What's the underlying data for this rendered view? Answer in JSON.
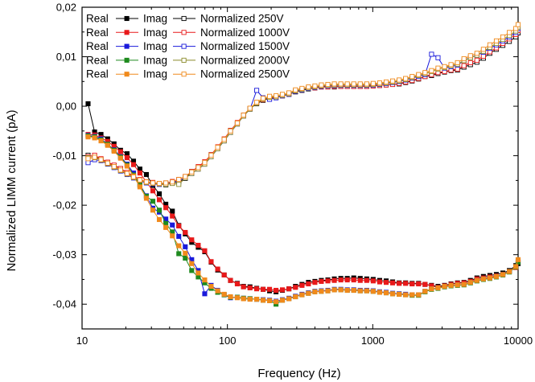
{
  "chart_data": {
    "type": "line",
    "xlabel": "Frequency (Hz)",
    "ylabel": "Normalized LIMM current (pA)",
    "xscale": "log",
    "xlim": [
      10,
      10000
    ],
    "ylim": [
      -0.045,
      0.02
    ],
    "x_ticks": [
      {
        "value": 10,
        "label": "10"
      },
      {
        "value": 100,
        "label": "100"
      },
      {
        "value": 1000,
        "label": "1000"
      },
      {
        "value": 10000,
        "label": "10000"
      }
    ],
    "y_ticks": [
      {
        "value": 0.02,
        "label": "0,02"
      },
      {
        "value": 0.01,
        "label": "0,01"
      },
      {
        "value": 0.0,
        "label": "0,00"
      },
      {
        "value": -0.01,
        "label": "-0,01"
      },
      {
        "value": -0.02,
        "label": "-0,02"
      },
      {
        "value": -0.03,
        "label": "-0,03"
      },
      {
        "value": -0.04,
        "label": "-0,04"
      }
    ],
    "grid": false,
    "legend_position": "top-left",
    "x": [
      11,
      12.2,
      13.5,
      15,
      16.6,
      18.4,
      20.4,
      22.6,
      25,
      27.7,
      30.7,
      34,
      37.7,
      41.8,
      46.3,
      51.3,
      56.8,
      63,
      69.8,
      77.3,
      85.7,
      95,
      105,
      117,
      129,
      143,
      159,
      176,
      195,
      216,
      239,
      265,
      294,
      326,
      361,
      400,
      443,
      491,
      544,
      603,
      668,
      740,
      820,
      909,
      1007,
      1116,
      1237,
      1370,
      1519,
      1683,
      1865,
      2067,
      2290,
      2538,
      2812,
      3117,
      3454,
      3827,
      4241,
      4700,
      5208,
      5771,
      6395,
      7087,
      7853,
      8703,
      9644,
      10000
    ],
    "series": [
      {
        "group": "250V",
        "part": "Real",
        "color": "#000000",
        "filled": true,
        "values": [
          0.0005,
          -0.0052,
          -0.0057,
          -0.0066,
          -0.0076,
          -0.0089,
          -0.0096,
          -0.0111,
          -0.0127,
          -0.0138,
          -0.016,
          -0.0177,
          -0.0198,
          -0.0212,
          -0.0241,
          -0.0258,
          -0.0275,
          -0.0285,
          -0.0294,
          -0.0315,
          -0.0331,
          -0.0341,
          -0.0352,
          -0.0358,
          -0.0364,
          -0.0365,
          -0.0368,
          -0.037,
          -0.0373,
          -0.0375,
          -0.0372,
          -0.0369,
          -0.0364,
          -0.036,
          -0.0356,
          -0.0354,
          -0.0352,
          -0.0351,
          -0.0349,
          -0.0348,
          -0.0348,
          -0.0347,
          -0.0348,
          -0.0349,
          -0.035,
          -0.0352,
          -0.0353,
          -0.0355,
          -0.0357,
          -0.0357,
          -0.0358,
          -0.0358,
          -0.036,
          -0.0362,
          -0.0364,
          -0.0362,
          -0.0359,
          -0.0357,
          -0.0356,
          -0.0352,
          -0.0347,
          -0.0344,
          -0.0342,
          -0.034,
          -0.0337,
          -0.0332,
          -0.0322,
          -0.0318
        ]
      },
      {
        "group": "250V",
        "part": "Imag",
        "color": "#000000",
        "filled": false,
        "values": [
          -0.0099,
          -0.0102,
          -0.0107,
          -0.0114,
          -0.012,
          -0.0126,
          -0.0134,
          -0.0141,
          -0.0149,
          -0.0153,
          -0.0155,
          -0.0157,
          -0.0159,
          -0.0155,
          -0.0153,
          -0.0146,
          -0.0132,
          -0.0123,
          -0.0115,
          -0.0098,
          -0.0083,
          -0.0067,
          -0.0049,
          -0.0034,
          -0.0018,
          -0.0005,
          0.0005,
          0.0012,
          0.0016,
          0.0018,
          0.0021,
          0.0024,
          0.0029,
          0.0032,
          0.0035,
          0.0037,
          0.0039,
          0.0039,
          0.0039,
          0.004,
          0.004,
          0.004,
          0.004,
          0.004,
          0.0041,
          0.0042,
          0.0043,
          0.0044,
          0.0045,
          0.0048,
          0.0051,
          0.0055,
          0.006,
          0.0062,
          0.0066,
          0.0069,
          0.0072,
          0.0073,
          0.0079,
          0.0084,
          0.0089,
          0.0097,
          0.0107,
          0.0115,
          0.0123,
          0.0131,
          0.014,
          0.0148
        ]
      },
      {
        "group": "1000V",
        "part": "Real",
        "color": "#e8191a",
        "filled": true,
        "values": [
          -0.0057,
          -0.0058,
          -0.0064,
          -0.0071,
          -0.0081,
          -0.0092,
          -0.0104,
          -0.0118,
          -0.0135,
          -0.0153,
          -0.0171,
          -0.0189,
          -0.0205,
          -0.0222,
          -0.0242,
          -0.0255,
          -0.027,
          -0.0281,
          -0.0292,
          -0.0314,
          -0.0329,
          -0.0341,
          -0.0352,
          -0.0359,
          -0.0365,
          -0.0367,
          -0.0369,
          -0.037,
          -0.037,
          -0.0372,
          -0.0371,
          -0.0369,
          -0.0366,
          -0.0362,
          -0.0359,
          -0.0356,
          -0.0354,
          -0.0353,
          -0.0352,
          -0.0351,
          -0.0351,
          -0.0351,
          -0.0352,
          -0.0352,
          -0.0353,
          -0.0355,
          -0.0356,
          -0.0357,
          -0.0358,
          -0.0358,
          -0.0359,
          -0.0359,
          -0.036,
          -0.0363,
          -0.0366,
          -0.0363,
          -0.036,
          -0.0358,
          -0.0357,
          -0.0354,
          -0.0349,
          -0.0347,
          -0.0345,
          -0.0343,
          -0.034,
          -0.0334,
          -0.0326,
          -0.0315
        ]
      },
      {
        "group": "1000V",
        "part": "Imag",
        "color": "#e8191a",
        "filled": false,
        "values": [
          -0.0102,
          -0.0099,
          -0.0106,
          -0.0113,
          -0.0119,
          -0.0126,
          -0.0134,
          -0.0141,
          -0.0148,
          -0.0153,
          -0.0154,
          -0.0156,
          -0.0155,
          -0.0152,
          -0.0148,
          -0.0142,
          -0.0132,
          -0.0122,
          -0.0112,
          -0.0098,
          -0.0082,
          -0.0066,
          -0.0049,
          -0.0033,
          -0.0018,
          -0.0005,
          0.0006,
          0.0013,
          0.0017,
          0.0018,
          0.0021,
          0.0024,
          0.003,
          0.0033,
          0.0036,
          0.0037,
          0.0039,
          0.0039,
          0.004,
          0.004,
          0.004,
          0.004,
          0.004,
          0.004,
          0.0041,
          0.0042,
          0.0043,
          0.0044,
          0.0046,
          0.0049,
          0.0052,
          0.0056,
          0.006,
          0.0064,
          0.0068,
          0.007,
          0.0073,
          0.0075,
          0.0082,
          0.0088,
          0.0093,
          0.0101,
          0.011,
          0.0118,
          0.0127,
          0.0136,
          0.0145,
          0.0153
        ]
      },
      {
        "group": "1500V",
        "part": "Real",
        "color": "#1a1adb",
        "filled": true,
        "values": [
          -0.0059,
          -0.0061,
          -0.0066,
          -0.0077,
          -0.0088,
          -0.0102,
          -0.0117,
          -0.0135,
          -0.0158,
          -0.0181,
          -0.0206,
          -0.0214,
          -0.0228,
          -0.024,
          -0.0263,
          -0.0284,
          -0.031,
          -0.0332,
          -0.0379,
          -0.0362,
          -0.0372,
          -0.0381,
          -0.0387,
          -0.0386,
          -0.0388,
          -0.0389,
          -0.039,
          -0.0391,
          -0.0392,
          -0.0394,
          -0.0391,
          -0.0388,
          -0.0384,
          -0.038,
          -0.0377,
          -0.0374,
          -0.0373,
          -0.0372,
          -0.037,
          -0.037,
          -0.0371,
          -0.0371,
          -0.0372,
          -0.0372,
          -0.0373,
          -0.0375,
          -0.0376,
          -0.0378,
          -0.0379,
          -0.038,
          -0.0381,
          -0.0381,
          -0.0374,
          -0.0369,
          -0.0367,
          -0.0364,
          -0.0362,
          -0.0361,
          -0.036,
          -0.0356,
          -0.0352,
          -0.0349,
          -0.0347,
          -0.0344,
          -0.034,
          -0.0334,
          -0.0324,
          -0.0314
        ]
      },
      {
        "group": "1500V",
        "part": "Imag",
        "color": "#1a1adb",
        "filled": false,
        "values": [
          -0.0114,
          -0.0108,
          -0.011,
          -0.0117,
          -0.0124,
          -0.0131,
          -0.0138,
          -0.0145,
          -0.0151,
          -0.0155,
          -0.0157,
          -0.0158,
          -0.0156,
          -0.0154,
          -0.015,
          -0.0145,
          -0.0136,
          -0.0127,
          -0.0117,
          -0.0102,
          -0.0086,
          -0.007,
          -0.0053,
          -0.0036,
          -0.002,
          -0.0006,
          0.0032,
          0.0017,
          0.0014,
          0.0017,
          0.0021,
          0.0024,
          0.003,
          0.0033,
          0.0036,
          0.0038,
          0.004,
          0.0041,
          0.0042,
          0.0042,
          0.0042,
          0.0042,
          0.0042,
          0.0042,
          0.0043,
          0.0044,
          0.0046,
          0.0048,
          0.005,
          0.0053,
          0.0057,
          0.006,
          0.0064,
          0.0105,
          0.0098,
          0.0077,
          0.008,
          0.0083,
          0.0092,
          0.0099,
          0.0103,
          0.0109,
          0.0117,
          0.0124,
          0.0132,
          0.014,
          0.0149,
          0.0157
        ]
      },
      {
        "group": "2000V",
        "part": "Real",
        "color": "#1e8a1e",
        "filled": true,
        "values": [
          -0.006,
          -0.0062,
          -0.0068,
          -0.0077,
          -0.0089,
          -0.0103,
          -0.0119,
          -0.0139,
          -0.016,
          -0.0182,
          -0.0192,
          -0.021,
          -0.0237,
          -0.0254,
          -0.0298,
          -0.0307,
          -0.0332,
          -0.0345,
          -0.0357,
          -0.0368,
          -0.0376,
          -0.0381,
          -0.0386,
          -0.0386,
          -0.0388,
          -0.0389,
          -0.039,
          -0.0392,
          -0.0393,
          -0.04,
          -0.0392,
          -0.0389,
          -0.0385,
          -0.0381,
          -0.0378,
          -0.0375,
          -0.0374,
          -0.0373,
          -0.0371,
          -0.0371,
          -0.0372,
          -0.0372,
          -0.0373,
          -0.0373,
          -0.0374,
          -0.0376,
          -0.0377,
          -0.0379,
          -0.038,
          -0.0381,
          -0.0382,
          -0.0382,
          -0.0375,
          -0.037,
          -0.0368,
          -0.0365,
          -0.0363,
          -0.0362,
          -0.0361,
          -0.0357,
          -0.0353,
          -0.035,
          -0.0348,
          -0.0345,
          -0.0341,
          -0.0335,
          -0.0325,
          -0.0315
        ]
      },
      {
        "group": "2000V",
        "part": "Imag",
        "color": "#8a8a2a",
        "filled": false,
        "values": [
          -0.0104,
          -0.0104,
          -0.0109,
          -0.0116,
          -0.0123,
          -0.013,
          -0.0137,
          -0.0144,
          -0.015,
          -0.0154,
          -0.0156,
          -0.0157,
          -0.0158,
          -0.0156,
          -0.0158,
          -0.0145,
          -0.0136,
          -0.0127,
          -0.0117,
          -0.0102,
          -0.0086,
          -0.007,
          -0.0053,
          -0.0036,
          -0.002,
          -0.0006,
          0.0006,
          0.0014,
          0.0018,
          0.0019,
          0.0022,
          0.0025,
          0.0031,
          0.0034,
          0.0037,
          0.0039,
          0.0041,
          0.0042,
          0.0043,
          0.0043,
          0.0043,
          0.0043,
          0.0043,
          0.0043,
          0.0044,
          0.0045,
          0.0047,
          0.0049,
          0.0051,
          0.0054,
          0.0058,
          0.0062,
          0.0066,
          0.007,
          0.0075,
          0.0078,
          0.0082,
          0.0085,
          0.0092,
          0.0098,
          0.0103,
          0.0111,
          0.0119,
          0.0127,
          0.0135,
          0.0143,
          0.0152,
          0.016
        ]
      },
      {
        "group": "2500V",
        "part": "Real",
        "color": "#f08a1c",
        "filled": true,
        "values": [
          -0.0062,
          -0.0064,
          -0.007,
          -0.0079,
          -0.0091,
          -0.0105,
          -0.0121,
          -0.0141,
          -0.0163,
          -0.0186,
          -0.021,
          -0.0229,
          -0.0245,
          -0.0262,
          -0.0282,
          -0.0297,
          -0.0318,
          -0.0337,
          -0.0351,
          -0.0364,
          -0.0373,
          -0.038,
          -0.0385,
          -0.0387,
          -0.0389,
          -0.039,
          -0.039,
          -0.0392,
          -0.0393,
          -0.0395,
          -0.0392,
          -0.0389,
          -0.0385,
          -0.0381,
          -0.0378,
          -0.0375,
          -0.0374,
          -0.0373,
          -0.0371,
          -0.0371,
          -0.0372,
          -0.0372,
          -0.0373,
          -0.0373,
          -0.0374,
          -0.0376,
          -0.0377,
          -0.0379,
          -0.038,
          -0.0381,
          -0.0381,
          -0.0381,
          -0.0374,
          -0.0369,
          -0.0367,
          -0.0364,
          -0.0362,
          -0.0361,
          -0.036,
          -0.0356,
          -0.0352,
          -0.0349,
          -0.0347,
          -0.0344,
          -0.034,
          -0.0334,
          -0.0324,
          -0.031
        ]
      },
      {
        "group": "2500V",
        "part": "Imag",
        "color": "#f08a1c",
        "filled": false,
        "values": [
          -0.0106,
          -0.0103,
          -0.0108,
          -0.0115,
          -0.0122,
          -0.0129,
          -0.0136,
          -0.0143,
          -0.0149,
          -0.0153,
          -0.0155,
          -0.0156,
          -0.0155,
          -0.0153,
          -0.0148,
          -0.0142,
          -0.0133,
          -0.0124,
          -0.0114,
          -0.0099,
          -0.0083,
          -0.0067,
          -0.005,
          -0.0034,
          -0.0018,
          -0.0004,
          0.0008,
          0.0016,
          0.002,
          0.0021,
          0.0024,
          0.0027,
          0.0033,
          0.0036,
          0.0039,
          0.0041,
          0.0043,
          0.0044,
          0.0045,
          0.0045,
          0.0045,
          0.0045,
          0.0045,
          0.0045,
          0.0046,
          0.0047,
          0.0049,
          0.0051,
          0.0053,
          0.0056,
          0.006,
          0.0064,
          0.0068,
          0.0072,
          0.0077,
          0.008,
          0.0084,
          0.0088,
          0.0096,
          0.0102,
          0.0107,
          0.0115,
          0.0124,
          0.0132,
          0.014,
          0.0149,
          0.0157,
          0.0165
        ]
      }
    ],
    "legend": [
      {
        "real_label": "Real",
        "imag_label": "Imag",
        "norm_label": "Normalized 250V",
        "color": "#000000",
        "imag_color": "#000000"
      },
      {
        "real_label": "Real",
        "imag_label": "Imag",
        "norm_label": "Normalized 1000V",
        "color": "#e8191a",
        "imag_color": "#e8191a"
      },
      {
        "real_label": "Real",
        "imag_label": "Imag",
        "norm_label": "Normalized 1500V",
        "color": "#1a1adb",
        "imag_color": "#1a1adb"
      },
      {
        "real_label": "Real",
        "imag_label": "Imag",
        "norm_label": "Normalized 2000V",
        "color": "#1e8a1e",
        "imag_color": "#8a8a2a"
      },
      {
        "real_label": "Real",
        "imag_label": "Imag",
        "norm_label": "Normalized 2500V",
        "color": "#f08a1c",
        "imag_color": "#f08a1c"
      }
    ]
  }
}
